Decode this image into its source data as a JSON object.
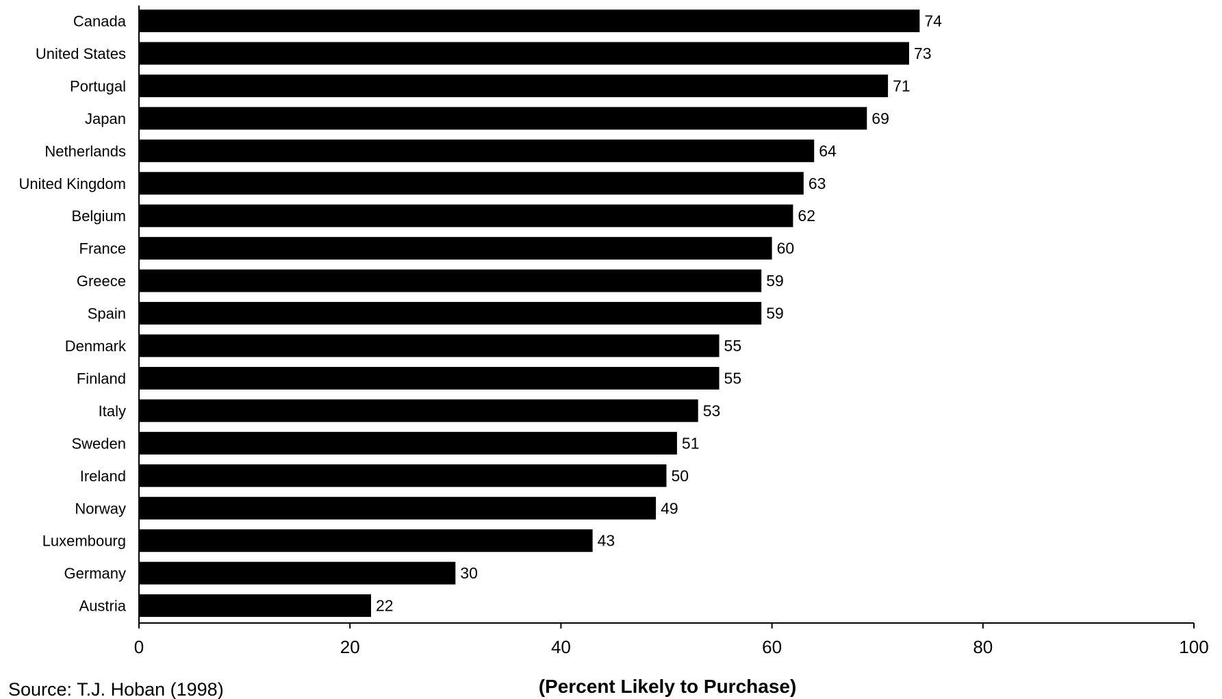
{
  "chart_data": {
    "type": "bar",
    "orientation": "horizontal",
    "categories": [
      "Canada",
      "United States",
      "Portugal",
      "Japan",
      "Netherlands",
      "United Kingdom",
      "Belgium",
      "France",
      "Greece",
      "Spain",
      "Denmark",
      "Finland",
      "Italy",
      "Sweden",
      "Ireland",
      "Norway",
      "Luxembourg",
      "Germany",
      "Austria"
    ],
    "values": [
      74,
      73,
      71,
      69,
      64,
      63,
      62,
      60,
      59,
      59,
      55,
      55,
      53,
      51,
      50,
      49,
      43,
      30,
      22
    ],
    "xlabel": "(Percent Likely to Purchase)",
    "xlim": [
      0,
      100
    ],
    "xticks": [
      0,
      20,
      40,
      60,
      80,
      100
    ],
    "bar_color": "#000000",
    "grid": false,
    "legend": "none"
  },
  "source": "Source:  T.J. Hoban (1998)"
}
